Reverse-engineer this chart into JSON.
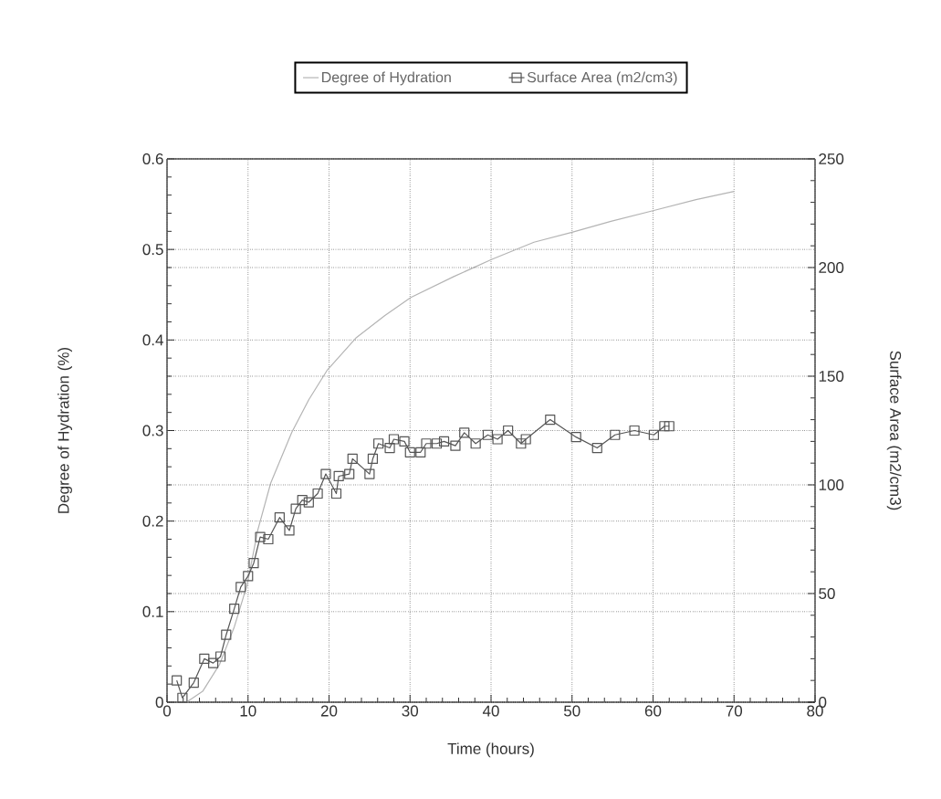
{
  "chart_data": {
    "type": "line",
    "xlabel": "Time (hours)",
    "ylabel": "Degree of Hydration (%)",
    "y2label": "Surface Area (m2/cm3)",
    "xlim": [
      0,
      80
    ],
    "xticks": [
      0,
      10,
      20,
      30,
      40,
      50,
      60,
      70,
      80
    ],
    "ylim": [
      0,
      0.6
    ],
    "yticks": [
      0,
      0.1,
      0.2,
      0.3,
      0.4,
      0.5,
      0.6
    ],
    "y2lim": [
      0,
      250
    ],
    "y2ticks": [
      0,
      50,
      100,
      150,
      200,
      250
    ],
    "grid": true,
    "legend": "top",
    "line_style": "solid",
    "series": [
      {
        "name": "Degree of Hydration",
        "color": "#b4b4b4",
        "marker": "none",
        "x": [
          2.4,
          4.4,
          6.5,
          8.3,
          9.9,
          11.2,
          12.8,
          15.4,
          17.5,
          19.8,
          23.3,
          26.9,
          30.1,
          35.4,
          40.1,
          45.3,
          50.0,
          54.8,
          60.1,
          65.3,
          70.0
        ],
        "values": [
          0,
          0.012,
          0.042,
          0.083,
          0.13,
          0.19,
          0.242,
          0.298,
          0.334,
          0.367,
          0.402,
          0.427,
          0.447,
          0.47,
          0.489,
          0.508,
          0.519,
          0.531,
          0.543,
          0.555,
          0.564
        ]
      },
      {
        "name": "Surface Area (m2/cm3)",
        "color": "#555555",
        "marker": "square",
        "axis": "y2",
        "x": [
          1.2,
          1.9,
          3.3,
          4.6,
          5.7,
          6.6,
          7.3,
          8.3,
          9.1,
          10.0,
          10.7,
          11.5,
          12.5,
          13.9,
          15.1,
          15.9,
          16.7,
          17.5,
          18.6,
          19.6,
          20.9,
          21.2,
          22.5,
          22.9,
          25.0,
          25.4,
          26.1,
          27.5,
          28.0,
          29.3,
          30.0,
          31.3,
          32.0,
          33.3,
          34.2,
          35.6,
          36.7,
          38.1,
          39.6,
          40.8,
          42.1,
          43.7,
          44.3,
          47.3,
          50.5,
          53.1,
          55.3,
          57.7,
          60.1,
          61.4,
          62.0
        ],
        "values": [
          10,
          2,
          9,
          20,
          18,
          21,
          31,
          43,
          53,
          58,
          64,
          76,
          75,
          85,
          79,
          89,
          93,
          92,
          96,
          105,
          96,
          104,
          105,
          112,
          105,
          112,
          119,
          117,
          121,
          120,
          115,
          115,
          119,
          119,
          120,
          118,
          124,
          119,
          123,
          121,
          125,
          119,
          121,
          130,
          122,
          117,
          123,
          125,
          123,
          127,
          127
        ]
      }
    ]
  }
}
